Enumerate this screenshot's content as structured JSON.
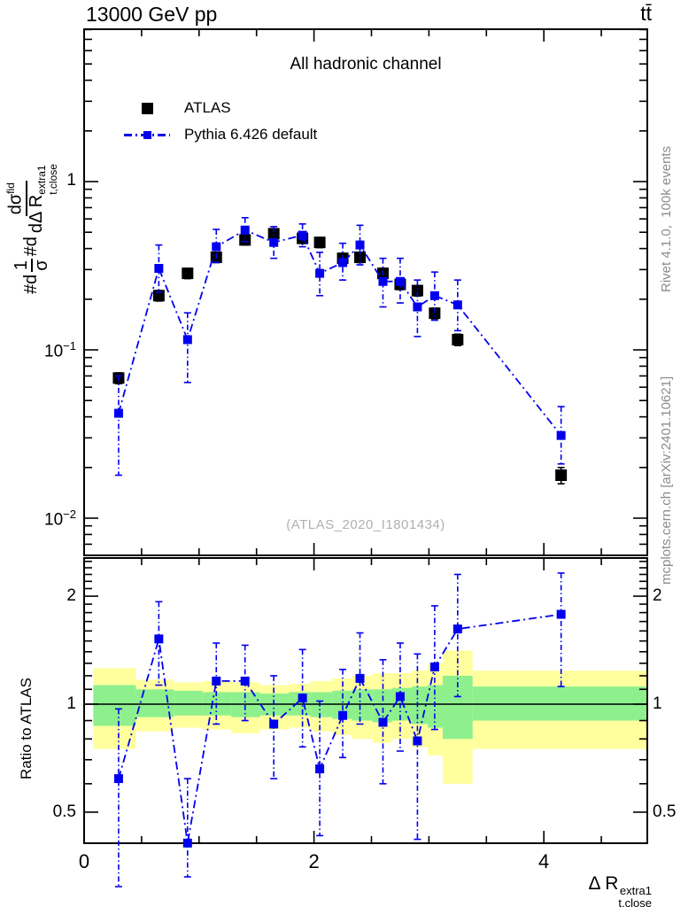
{
  "header": {
    "collision": "13000 GeV pp",
    "process": "tt̄"
  },
  "plot": {
    "subtitle": "All hadronic channel",
    "watermark": "(ATLAS_2020_I1801434)",
    "ratio_ylabel": "Ratio to ATLAS",
    "ylabel_parts": {
      "prefix1": "#d",
      "frac1_num": "1",
      "frac1_den": "σ",
      "prefix2": "#d",
      "frac2_num": "dσ",
      "frac2_num_sup": "fid",
      "frac2_den": "dΔ R",
      "frac2_den_sub": "t,close",
      "frac2_den_sup": "extra1"
    },
    "xlabel_parts": {
      "main": "Δ R",
      "sup": "extra1",
      "sub": "t,close"
    }
  },
  "legend": [
    {
      "label": "ATLAS",
      "marker": "black-square"
    },
    {
      "label": "Pythia 6.426 default",
      "marker": "blue-dashdot-square"
    }
  ],
  "sidebar": {
    "generator_note": "Rivet 4.1.0,  100k events",
    "source_note": "mcplots.cern.ch [arXiv:2401.10621]"
  },
  "colors": {
    "mc_blue": "#0000ee",
    "data_black": "#000000",
    "band_outer_yellow": "#ffff9e",
    "band_inner_green": "#8df08d",
    "annotation_gray": "#8c8c8c",
    "watermark_gray": "#b0b0b0"
  },
  "axes": {
    "x_range": [
      0,
      4.9
    ],
    "x_minor_step": 0.5,
    "x_ticks": [
      {
        "value": 0,
        "label": "0"
      },
      {
        "value": 2,
        "label": "2"
      },
      {
        "value": 4,
        "label": "4"
      }
    ],
    "main_y_scale": "log",
    "main_y_range": [
      0.006,
      8.0
    ],
    "main_y_ticks": [
      {
        "value": 1,
        "base": "1",
        "exp": ""
      },
      {
        "value": 0.1,
        "base": "10",
        "exp": "−1"
      },
      {
        "value": 0.01,
        "base": "10",
        "exp": "−2"
      }
    ],
    "ratio_y_scale": "log",
    "ratio_y_range": [
      0.41,
      2.56
    ],
    "ratio_y_ticks": [
      {
        "value": 2,
        "label": "2"
      },
      {
        "value": 1,
        "label": "1"
      },
      {
        "value": 0.5,
        "label": "0.5"
      }
    ]
  },
  "chart_data": {
    "type": "line",
    "title": "13000 GeV pp, ttbar, All hadronic channel",
    "xlabel": "Delta R_t,close^extra1",
    "ylabel": "(1/sigma) dsigma^fid / dDelta R_t,close^extra1",
    "yscale": "log",
    "x": [
      0.3,
      0.65,
      0.9,
      1.15,
      1.4,
      1.65,
      1.9,
      2.05,
      2.25,
      2.4,
      2.6,
      2.75,
      2.9,
      3.05,
      3.25,
      4.15
    ],
    "series": [
      {
        "name": "ATLAS",
        "type": "scatter",
        "marker": "square",
        "color": "#000000",
        "values": [
          0.068,
          0.21,
          0.285,
          0.355,
          0.45,
          0.49,
          0.46,
          0.435,
          0.35,
          0.355,
          0.285,
          0.245,
          0.225,
          0.165,
          0.115,
          0.018
        ],
        "err": [
          0.005,
          0.015,
          0.02,
          0.025,
          0.03,
          0.033,
          0.031,
          0.03,
          0.024,
          0.025,
          0.02,
          0.017,
          0.016,
          0.012,
          0.009,
          0.002
        ]
      },
      {
        "name": "Pythia 6.426 default",
        "type": "line-scatter",
        "marker": "square",
        "color": "#0000ee",
        "linestyle": "dashdot",
        "values": [
          0.042,
          0.305,
          0.115,
          0.41,
          0.515,
          0.435,
          0.48,
          0.285,
          0.33,
          0.42,
          0.255,
          0.255,
          0.18,
          0.21,
          0.185,
          0.031
        ],
        "err_lo": [
          0.024,
          0.085,
          0.051,
          0.08,
          0.075,
          0.085,
          0.07,
          0.075,
          0.07,
          0.1,
          0.075,
          0.065,
          0.06,
          0.06,
          0.055,
          0.01
        ],
        "err_hi": [
          0.028,
          0.115,
          0.051,
          0.11,
          0.095,
          0.105,
          0.08,
          0.095,
          0.1,
          0.13,
          0.095,
          0.095,
          0.08,
          0.08,
          0.075,
          0.015
        ]
      }
    ],
    "ratio": {
      "name": "Pythia / ATLAS",
      "reference": 1,
      "values": [
        0.62,
        1.52,
        0.41,
        1.16,
        1.16,
        0.88,
        1.04,
        0.66,
        0.93,
        1.18,
        0.89,
        1.05,
        0.79,
        1.27,
        1.62,
        1.78
      ],
      "err_lo": [
        0.31,
        0.39,
        0.08,
        0.28,
        0.26,
        0.26,
        0.28,
        0.23,
        0.22,
        0.3,
        0.29,
        0.31,
        0.37,
        0.42,
        0.57,
        0.66
      ],
      "err_hi": [
        0.35,
        0.41,
        0.21,
        0.32,
        0.3,
        0.32,
        0.38,
        0.36,
        0.32,
        0.4,
        0.44,
        0.43,
        0.59,
        0.61,
        0.68,
        0.54
      ]
    },
    "ratio_bands": [
      {
        "x1": 0.08,
        "x2": 0.45,
        "outer": [
          0.75,
          1.26
        ],
        "inner": [
          0.87,
          1.13
        ]
      },
      {
        "x1": 0.45,
        "x2": 0.78,
        "outer": [
          0.84,
          1.17
        ],
        "inner": [
          0.92,
          1.1
        ]
      },
      {
        "x1": 0.78,
        "x2": 1.03,
        "outer": [
          0.86,
          1.15
        ],
        "inner": [
          0.93,
          1.09
        ]
      },
      {
        "x1": 1.03,
        "x2": 1.28,
        "outer": [
          0.85,
          1.16
        ],
        "inner": [
          0.93,
          1.08
        ]
      },
      {
        "x1": 1.28,
        "x2": 1.53,
        "outer": [
          0.83,
          1.15
        ],
        "inner": [
          0.92,
          1.08
        ]
      },
      {
        "x1": 1.53,
        "x2": 1.78,
        "outer": [
          0.85,
          1.13
        ],
        "inner": [
          0.93,
          1.07
        ]
      },
      {
        "x1": 1.78,
        "x2": 1.97,
        "outer": [
          0.86,
          1.14
        ],
        "inner": [
          0.93,
          1.08
        ]
      },
      {
        "x1": 1.97,
        "x2": 2.16,
        "outer": [
          0.84,
          1.16
        ],
        "inner": [
          0.92,
          1.08
        ]
      },
      {
        "x1": 2.16,
        "x2": 2.33,
        "outer": [
          0.82,
          1.18
        ],
        "inner": [
          0.91,
          1.09
        ]
      },
      {
        "x1": 2.33,
        "x2": 2.51,
        "outer": [
          0.8,
          1.2
        ],
        "inner": [
          0.9,
          1.1
        ]
      },
      {
        "x1": 2.51,
        "x2": 2.68,
        "outer": [
          0.78,
          1.22
        ],
        "inner": [
          0.89,
          1.1
        ]
      },
      {
        "x1": 2.68,
        "x2": 2.85,
        "outer": [
          0.8,
          1.22
        ],
        "inner": [
          0.9,
          1.11
        ]
      },
      {
        "x1": 2.85,
        "x2": 2.99,
        "outer": [
          0.76,
          1.24
        ],
        "inner": [
          0.88,
          1.12
        ]
      },
      {
        "x1": 2.99,
        "x2": 3.12,
        "outer": [
          0.72,
          1.3
        ],
        "inner": [
          0.86,
          1.13
        ]
      },
      {
        "x1": 3.12,
        "x2": 3.38,
        "outer": [
          0.6,
          1.41
        ],
        "inner": [
          0.8,
          1.2
        ]
      },
      {
        "x1": 3.38,
        "x2": 4.9,
        "outer": [
          0.75,
          1.24
        ],
        "inner": [
          0.9,
          1.12
        ]
      }
    ]
  }
}
